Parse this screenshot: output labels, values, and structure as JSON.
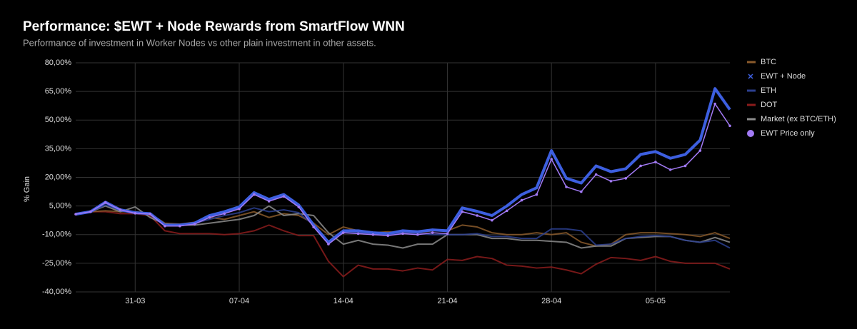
{
  "chart_data": {
    "type": "line",
    "title": "Performance: $EWT + Node Rewards from SmartFlow WNN",
    "subtitle": "Performance of investment in Worker Nodes vs other plain investment in other assets.",
    "y_label": "% Gain",
    "categories": [
      null,
      null,
      null,
      null,
      "31-03",
      null,
      null,
      null,
      null,
      null,
      null,
      "07-04",
      null,
      null,
      null,
      null,
      null,
      null,
      "14-04",
      null,
      null,
      null,
      null,
      null,
      null,
      "21-04",
      null,
      null,
      null,
      null,
      null,
      null,
      "28-04",
      null,
      null,
      null,
      null,
      null,
      null,
      "05-05",
      null,
      null,
      null,
      null,
      null
    ],
    "ylim": [
      -40,
      80
    ],
    "yticks": [
      {
        "value": 80,
        "label": "80,00%"
      },
      {
        "value": 65,
        "label": "65,00%"
      },
      {
        "value": 50,
        "label": "50,00%"
      },
      {
        "value": 35,
        "label": "35,00%"
      },
      {
        "value": 20,
        "label": "20,00%"
      },
      {
        "value": 5,
        "label": "5,00%"
      },
      {
        "value": -10,
        "label": "-10,00%"
      },
      {
        "value": -25,
        "label": "-25,00%"
      },
      {
        "value": -40,
        "label": "-40,00%"
      }
    ],
    "grid": true,
    "legend": "right",
    "series": [
      {
        "name": "BTC",
        "color": "#8a5a2b",
        "marker": "line",
        "values": [
          0.7,
          2,
          2.5,
          2,
          2,
          1,
          -4,
          -4.5,
          -3.5,
          -1,
          -2,
          0,
          2,
          -1,
          1,
          0,
          -4,
          -10,
          -6,
          -8,
          -9,
          -8.5,
          -9,
          -9,
          -8,
          -8,
          -5,
          -6,
          -9,
          -10,
          -10,
          -9,
          -10,
          -9,
          -14,
          -16,
          -15,
          -10,
          -9,
          -9,
          -9.5,
          -10,
          -11,
          -9,
          -12
        ]
      },
      {
        "name": "EWT + Node",
        "color": "#3d5fe0",
        "marker": "x",
        "values": [
          0.7,
          2,
          7,
          3,
          1.5,
          1,
          -5,
          -5,
          -4,
          0,
          2,
          4.5,
          12,
          8.5,
          11,
          5.5,
          -5,
          -14,
          -8,
          -8,
          -9,
          -9.5,
          -8,
          -8.5,
          -7.5,
          -8,
          4,
          2.2,
          0,
          5,
          11,
          14.5,
          34,
          19.5,
          17,
          26,
          23,
          24.5,
          32,
          33.5,
          30,
          32,
          39.5,
          66.5,
          55.5
        ]
      },
      {
        "name": "ETH",
        "color": "#2c3f8f",
        "marker": "line",
        "values": [
          0.7,
          2,
          5.5,
          3,
          1,
          1,
          -5,
          -5,
          -4,
          -2,
          0,
          1.5,
          4,
          2,
          3,
          1.5,
          -5,
          -14,
          -9,
          -9,
          -10,
          -10,
          -9,
          -9.5,
          -10,
          -10,
          -10,
          -9.5,
          -11,
          -11,
          -12,
          -12,
          -7,
          -7,
          -8,
          -15.5,
          -15,
          -12,
          -11,
          -10.5,
          -11,
          -13,
          -14,
          -13,
          -17
        ]
      },
      {
        "name": "DOT",
        "color": "#8b1c1c",
        "marker": "line",
        "values": [
          0.7,
          2,
          2,
          1,
          1,
          0,
          -8,
          -9.5,
          -9.5,
          -9.5,
          -10,
          -9.5,
          -8,
          -5,
          -8,
          -10.5,
          -10.5,
          -24,
          -32,
          -26,
          -28,
          -28,
          -29,
          -27.5,
          -28.5,
          -23,
          -23.5,
          -21.5,
          -22.5,
          -26,
          -26.5,
          -27.5,
          -27,
          -28.5,
          -30.5,
          -25.5,
          -22,
          -22.5,
          -23.5,
          -21.5,
          -24,
          -25,
          -25,
          -25,
          -28
        ]
      },
      {
        "name": "Market (ex BTC/ETH)",
        "color": "#8c8c8c",
        "marker": "line",
        "values": [
          0.7,
          2,
          5,
          2,
          4.5,
          -1,
          -4.5,
          -5,
          -5,
          -4,
          -3,
          -2,
          0,
          5,
          0,
          1,
          0,
          -9,
          -15,
          -13,
          -15,
          -15.5,
          -17,
          -15,
          -15,
          -10,
          -10,
          -10,
          -12,
          -12,
          -13,
          -13,
          -13.5,
          -14,
          -17,
          -16,
          -16,
          -12,
          -11.5,
          -11,
          -11,
          -13,
          -14,
          -11.5,
          -14
        ]
      },
      {
        "name": "EWT Price only",
        "color": "#a27af5",
        "marker": "circle",
        "values": [
          0.7,
          2,
          6.8,
          3,
          1.2,
          0.8,
          -5.5,
          -5.5,
          -4.5,
          -1,
          1,
          3.5,
          11,
          7.5,
          10,
          4.5,
          -6,
          -15,
          -9,
          -9.5,
          -10,
          -10.5,
          -9.5,
          -10,
          -9,
          -9.5,
          2,
          0,
          -2.5,
          2.5,
          8,
          11,
          29.5,
          15,
          12.5,
          21.5,
          18,
          19.5,
          26,
          28,
          24,
          26,
          34,
          58.5,
          47
        ]
      }
    ]
  }
}
